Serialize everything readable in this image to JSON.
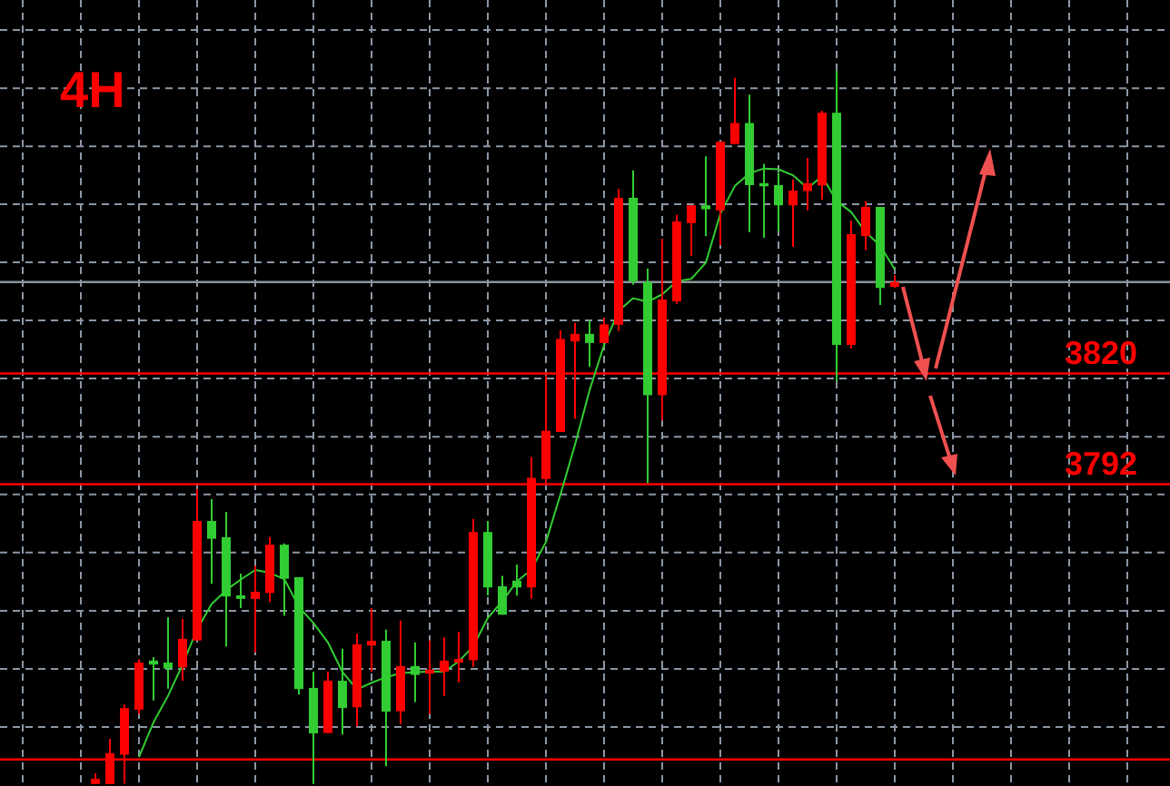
{
  "chart_data": {
    "type": "candlestick",
    "title": "4H",
    "grid": true,
    "categories": [
      null,
      null,
      null,
      null,
      null,
      null,
      null,
      null,
      null,
      null,
      null,
      null,
      null,
      null,
      null,
      null,
      null,
      null,
      null,
      null,
      null,
      null,
      null,
      null,
      null,
      null,
      null,
      null,
      null,
      null,
      null,
      null,
      null,
      null,
      null,
      null,
      null,
      null,
      null,
      null,
      null,
      null,
      null,
      null,
      null,
      null,
      null,
      null,
      null,
      null,
      null,
      null,
      null,
      null,
      null,
      null
    ],
    "ohlc": [
      [
        3716.2,
        3718.9,
        3716.2,
        3717.5
      ],
      [
        3716.2,
        3727.6,
        3716.2,
        3724.0
      ],
      [
        3723.6,
        3736.3,
        3716.3,
        3735.4
      ],
      [
        3735.0,
        3747.7,
        3733.9,
        3746.9
      ],
      [
        3747.4,
        3748.3,
        3737.3,
        3746.4
      ],
      [
        3746.9,
        3758.4,
        3740.3,
        3745.4
      ],
      [
        3745.7,
        3757.9,
        3742.3,
        3752.9
      ],
      [
        3752.5,
        3790.8,
        3752.5,
        3782.7
      ],
      [
        3782.7,
        3788.2,
        3766.8,
        3778.2
      ],
      [
        3778.6,
        3785.0,
        3751.0,
        3763.6
      ],
      [
        3763.9,
        3769.4,
        3760.7,
        3763.0
      ],
      [
        3763.0,
        3771.4,
        3749.5,
        3764.8
      ],
      [
        3764.5,
        3778.6,
        3762.2,
        3776.7
      ],
      [
        3776.7,
        3777.0,
        3758.7,
        3768.1
      ],
      [
        3768.5,
        3768.5,
        3738.8,
        3740.2
      ],
      [
        3740.5,
        3744.6,
        3716.2,
        3729.0
      ],
      [
        3729.1,
        3744.6,
        3729.1,
        3742.3
      ],
      [
        3742.3,
        3750.4,
        3728.7,
        3735.4
      ],
      [
        3735.6,
        3754.2,
        3730.8,
        3751.5
      ],
      [
        3751.2,
        3760.7,
        3744.6,
        3752.4
      ],
      [
        3752.4,
        3755.2,
        3720.7,
        3734.5
      ],
      [
        3734.6,
        3757.5,
        3731.3,
        3746.0
      ],
      [
        3746.0,
        3752.0,
        3736.9,
        3743.8
      ],
      [
        3744.1,
        3752.5,
        3733.9,
        3745.1
      ],
      [
        3744.6,
        3753.3,
        3738.5,
        3747.4
      ],
      [
        3746.9,
        3754.7,
        3741.9,
        3747.8
      ],
      [
        3747.5,
        3783.2,
        3745.8,
        3779.9
      ],
      [
        3779.9,
        3782.7,
        3763.9,
        3765.9
      ],
      [
        3766.2,
        3768.8,
        3759.0,
        3759.0
      ],
      [
        3767.6,
        3771.7,
        3763.8,
        3765.9
      ],
      [
        3765.9,
        3798.9,
        3763.0,
        3793.6
      ],
      [
        3793.3,
        3819.5,
        3792.0,
        3805.5
      ],
      [
        3805.2,
        3830.9,
        3805.2,
        3828.7
      ],
      [
        3828.1,
        3832.7,
        3808.5,
        3830.0
      ],
      [
        3830.0,
        3833.3,
        3821.7,
        3827.7
      ],
      [
        3827.7,
        3834.0,
        3827.7,
        3832.4
      ],
      [
        3832.3,
        3866.7,
        3830.7,
        3864.4
      ],
      [
        3864.4,
        3871.3,
        3842.4,
        3843.3
      ],
      [
        3843.1,
        3846.5,
        3792.3,
        3814.5
      ],
      [
        3814.5,
        3854.0,
        3808.1,
        3838.7
      ],
      [
        3838.2,
        3860.1,
        3837.6,
        3858.4
      ],
      [
        3858.0,
        3862.5,
        3849.7,
        3862.5
      ],
      [
        3862.5,
        3874.9,
        3854.7,
        3861.5
      ],
      [
        3861.2,
        3878.6,
        3852.4,
        3878.6
      ],
      [
        3878.0,
        3894.7,
        3878.0,
        3883.3
      ],
      [
        3883.3,
        3890.5,
        3855.7,
        3867.6
      ],
      [
        3868.1,
        3873.0,
        3854.3,
        3867.3
      ],
      [
        3867.6,
        3870.7,
        3856.0,
        3862.5
      ],
      [
        3862.5,
        3869.0,
        3852.0,
        3866.2
      ],
      [
        3866.1,
        3874.5,
        3861.2,
        3868.1
      ],
      [
        3867.5,
        3886.4,
        3863.9,
        3885.9
      ],
      [
        3885.9,
        3896.5,
        3818.0,
        3827.2
      ],
      [
        3827.2,
        3858.6,
        3826.3,
        3855.2
      ],
      [
        3854.7,
        3863.6,
        3851.2,
        3862.1
      ],
      [
        3862.1,
        3862.1,
        3837.3,
        3841.6
      ],
      [
        3841.9,
        3844.8,
        3841.6,
        3843.1
      ]
    ],
    "colors": [
      "#ff0000",
      "#ff0000",
      "#ff0000",
      "#ff0000",
      "#32cd32",
      "#32cd32",
      "#ff0000",
      "#ff0000",
      "#32cd32",
      "#32cd32",
      "#32cd32",
      "#ff0000",
      "#ff0000",
      "#32cd32",
      "#32cd32",
      "#32cd32",
      "#ff0000",
      "#32cd32",
      "#ff0000",
      "#ff0000",
      "#32cd32",
      "#ff0000",
      "#32cd32",
      "#ff0000",
      "#ff0000",
      "#ff0000",
      "#ff0000",
      "#32cd32",
      "#32cd32",
      "#32cd32",
      "#ff0000",
      "#ff0000",
      "#ff0000",
      "#ff0000",
      "#32cd32",
      "#ff0000",
      "#ff0000",
      "#32cd32",
      "#32cd32",
      "#ff0000",
      "#ff0000",
      "#ff0000",
      "#32cd32",
      "#ff0000",
      "#ff0000",
      "#32cd32",
      "#32cd32",
      "#32cd32",
      "#ff0000",
      "#ff0000",
      "#ff0000",
      "#32cd32",
      "#ff0000",
      "#ff0000",
      "#32cd32",
      "#ff0000"
    ],
    "series": [
      {
        "type": "line",
        "color": "#32cd32",
        "values": [
          null,
          null,
          null,
          3723.0,
          3731.8,
          3738.5,
          3746.4,
          3755.3,
          3761.7,
          3765.2,
          3767.9,
          3770.3,
          3769.6,
          3768.0,
          3761.0,
          3756.9,
          3752.0,
          3744.5,
          3740.1,
          3741.8,
          3743.2,
          3744.2,
          3744.5,
          3744.6,
          3744.6,
          3747.2,
          3751.0,
          3758.2,
          3762.4,
          3767.4,
          3770.4,
          3777.4,
          3789.4,
          3802.0,
          3815.7,
          3827.2,
          3835.8,
          3839.0,
          3838.1,
          3840.0,
          3843.3,
          3843.9,
          3848.0,
          3860.4,
          3867.4,
          3870.6,
          3871.8,
          3871.6,
          3870.1,
          3866.8,
          3869.9,
          3863.6,
          3860.8,
          3855.7,
          3852.3,
          3846.3
        ]
      }
    ],
    "ylim": [
      3715.7,
      3914.4
    ],
    "yticks": [
      {
        "value": 3730.6,
        "label": null
      },
      {
        "value": 3745.3,
        "label": null
      },
      {
        "value": 3760.0,
        "label": null
      },
      {
        "value": 3774.7,
        "label": null
      },
      {
        "value": 3789.4,
        "label": null
      },
      {
        "value": 3804.0,
        "label": null
      },
      {
        "value": 3818.7,
        "label": null
      },
      {
        "value": 3833.4,
        "label": null
      },
      {
        "value": 3848.1,
        "label": null
      },
      {
        "value": 3862.8,
        "label": null
      },
      {
        "value": 3877.4,
        "label": null
      },
      {
        "value": 3892.1,
        "label": null
      },
      {
        "value": 3906.8,
        "label": null
      }
    ],
    "ref_lines": [
      {
        "axis": "y",
        "value": 3820,
        "label": "3820",
        "color": "#ff0000"
      },
      {
        "axis": "y",
        "value": 3792,
        "label": "3792",
        "color": "#ff0000"
      },
      {
        "axis": "y",
        "value": 3843.1,
        "color": "#8c939b"
      },
      {
        "axis": "y",
        "value": 3722.4,
        "color": "#ff0000"
      }
    ]
  }
}
